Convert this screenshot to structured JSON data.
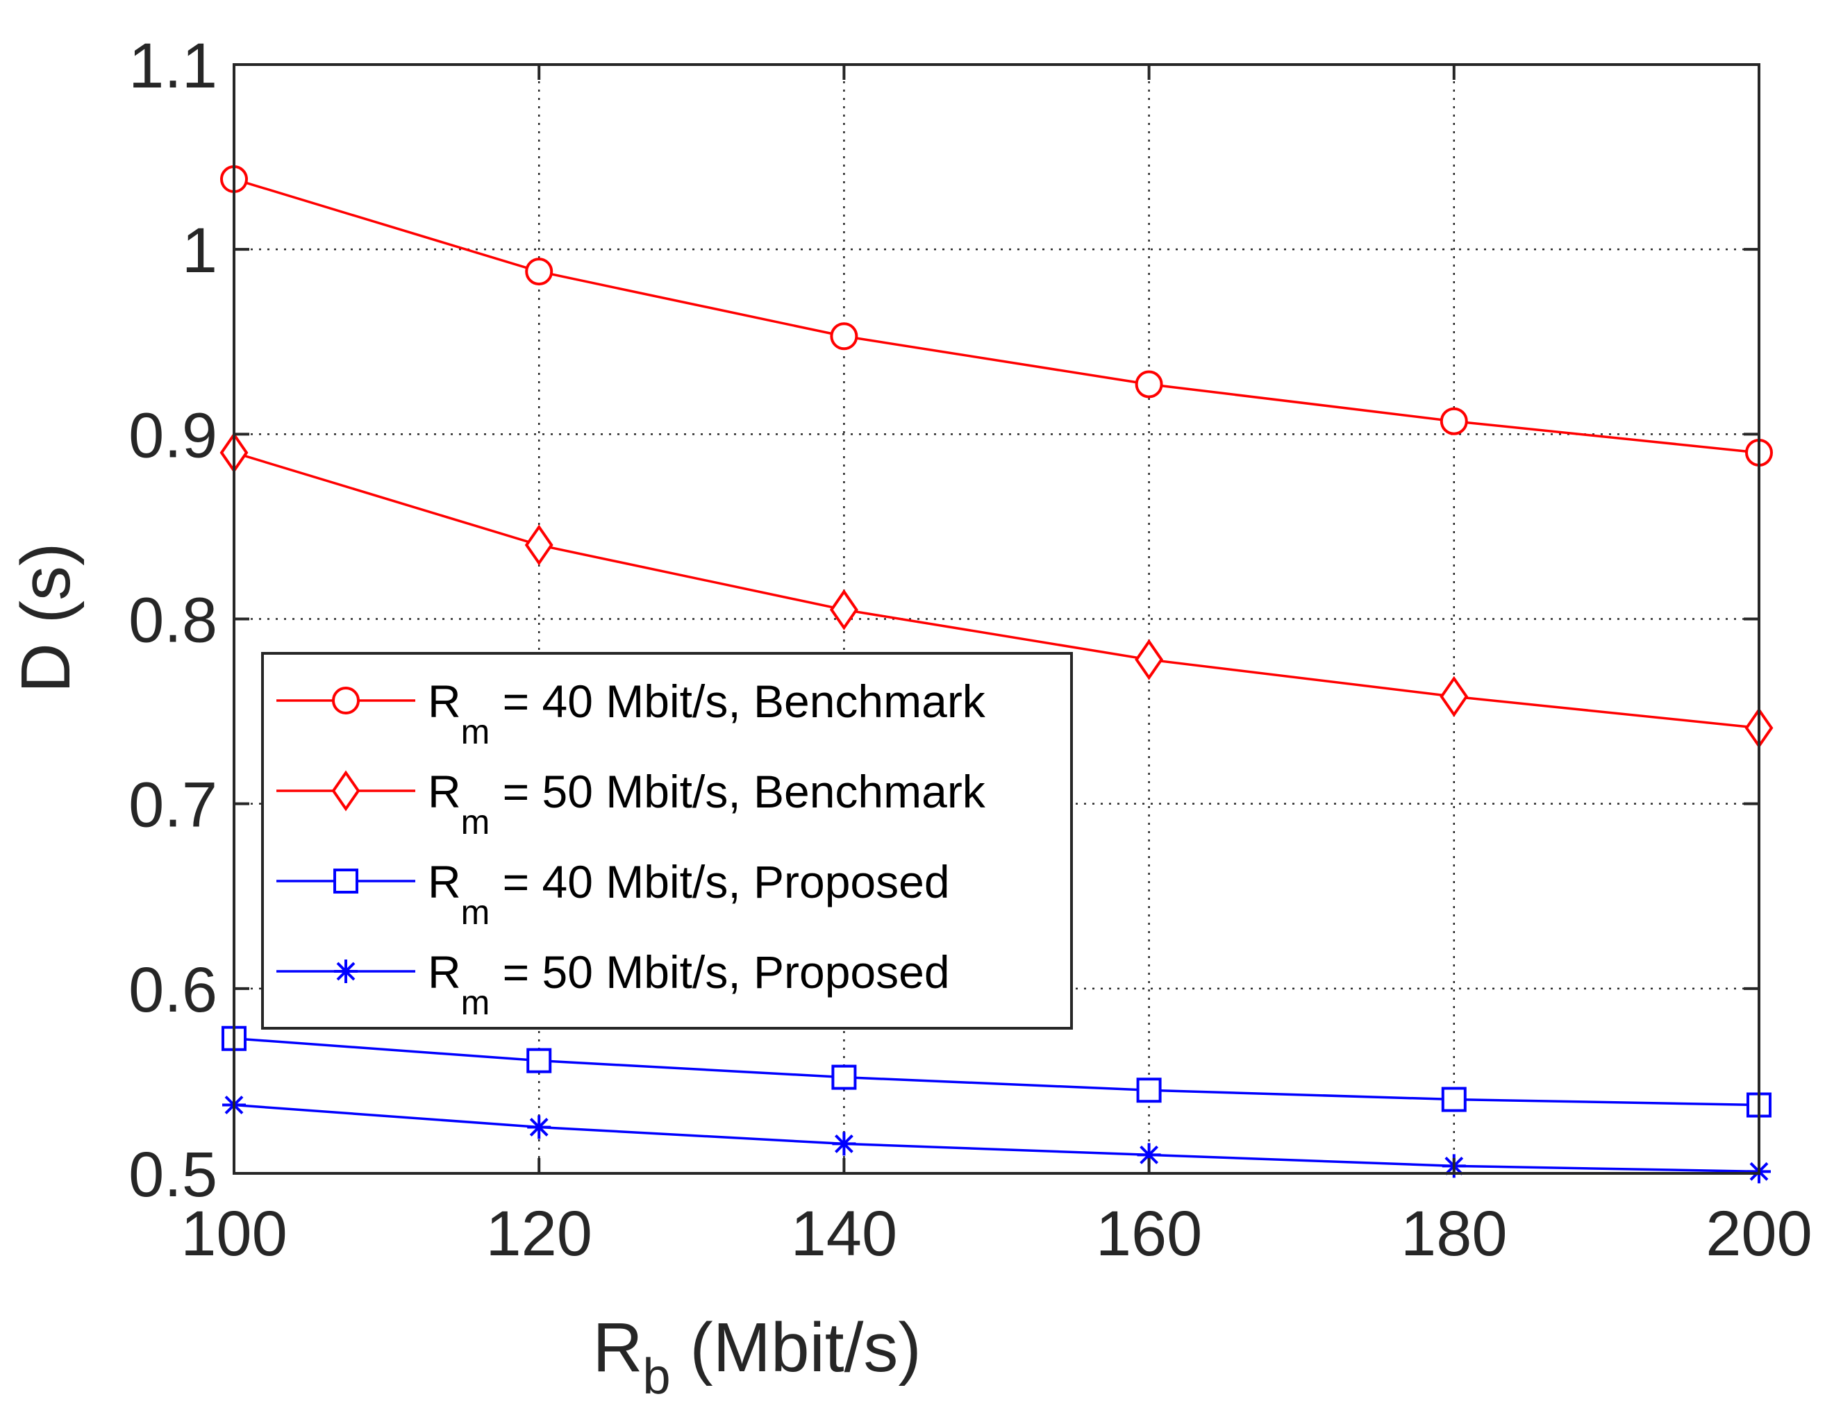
{
  "chart_data": {
    "type": "line",
    "title": "",
    "xlabel": {
      "main": "R",
      "sub": "b",
      "rest": " (Mbit/s)"
    },
    "ylabel": "D (s)",
    "xlim": [
      100,
      200
    ],
    "ylim": [
      0.5,
      1.1
    ],
    "grid": true,
    "x": [
      100,
      120,
      140,
      160,
      180,
      200
    ],
    "xticks": [
      100,
      120,
      140,
      160,
      180,
      200
    ],
    "xtick_labels": [
      "100",
      "120",
      "140",
      "160",
      "180",
      "200"
    ],
    "yticks": [
      0.5,
      0.6,
      0.7,
      0.8,
      0.9,
      1.0,
      1.1
    ],
    "ytick_labels": [
      "0.5",
      "0.6",
      "0.7",
      "0.8",
      "0.9",
      "1",
      "1.1"
    ],
    "legend_position": "center-left",
    "series": [
      {
        "name": "R_m = 40 Mbit/s, Benchmark",
        "label_main": "R",
        "label_sub": "m",
        "label_rest": " = 40 Mbit/s, Benchmark",
        "color": "#ff0000",
        "marker": "circle",
        "values": [
          1.038,
          0.988,
          0.953,
          0.927,
          0.907,
          0.89
        ]
      },
      {
        "name": "R_m = 50 Mbit/s, Benchmark",
        "label_main": "R",
        "label_sub": "m",
        "label_rest": " = 50 Mbit/s, Benchmark",
        "color": "#ff0000",
        "marker": "diamond",
        "values": [
          0.89,
          0.84,
          0.805,
          0.778,
          0.758,
          0.741
        ]
      },
      {
        "name": "R_m = 40 Mbit/s, Proposed",
        "label_main": "R",
        "label_sub": "m",
        "label_rest": " = 40 Mbit/s, Proposed",
        "color": "#0000ff",
        "marker": "square",
        "values": [
          0.573,
          0.561,
          0.552,
          0.545,
          0.54,
          0.537
        ]
      },
      {
        "name": "R_m = 50 Mbit/s, Proposed",
        "label_main": "R",
        "label_sub": "m",
        "label_rest": " = 50 Mbit/s, Proposed",
        "color": "#0000ff",
        "marker": "asterisk",
        "values": [
          0.537,
          0.525,
          0.516,
          0.51,
          0.504,
          0.501
        ]
      }
    ]
  }
}
